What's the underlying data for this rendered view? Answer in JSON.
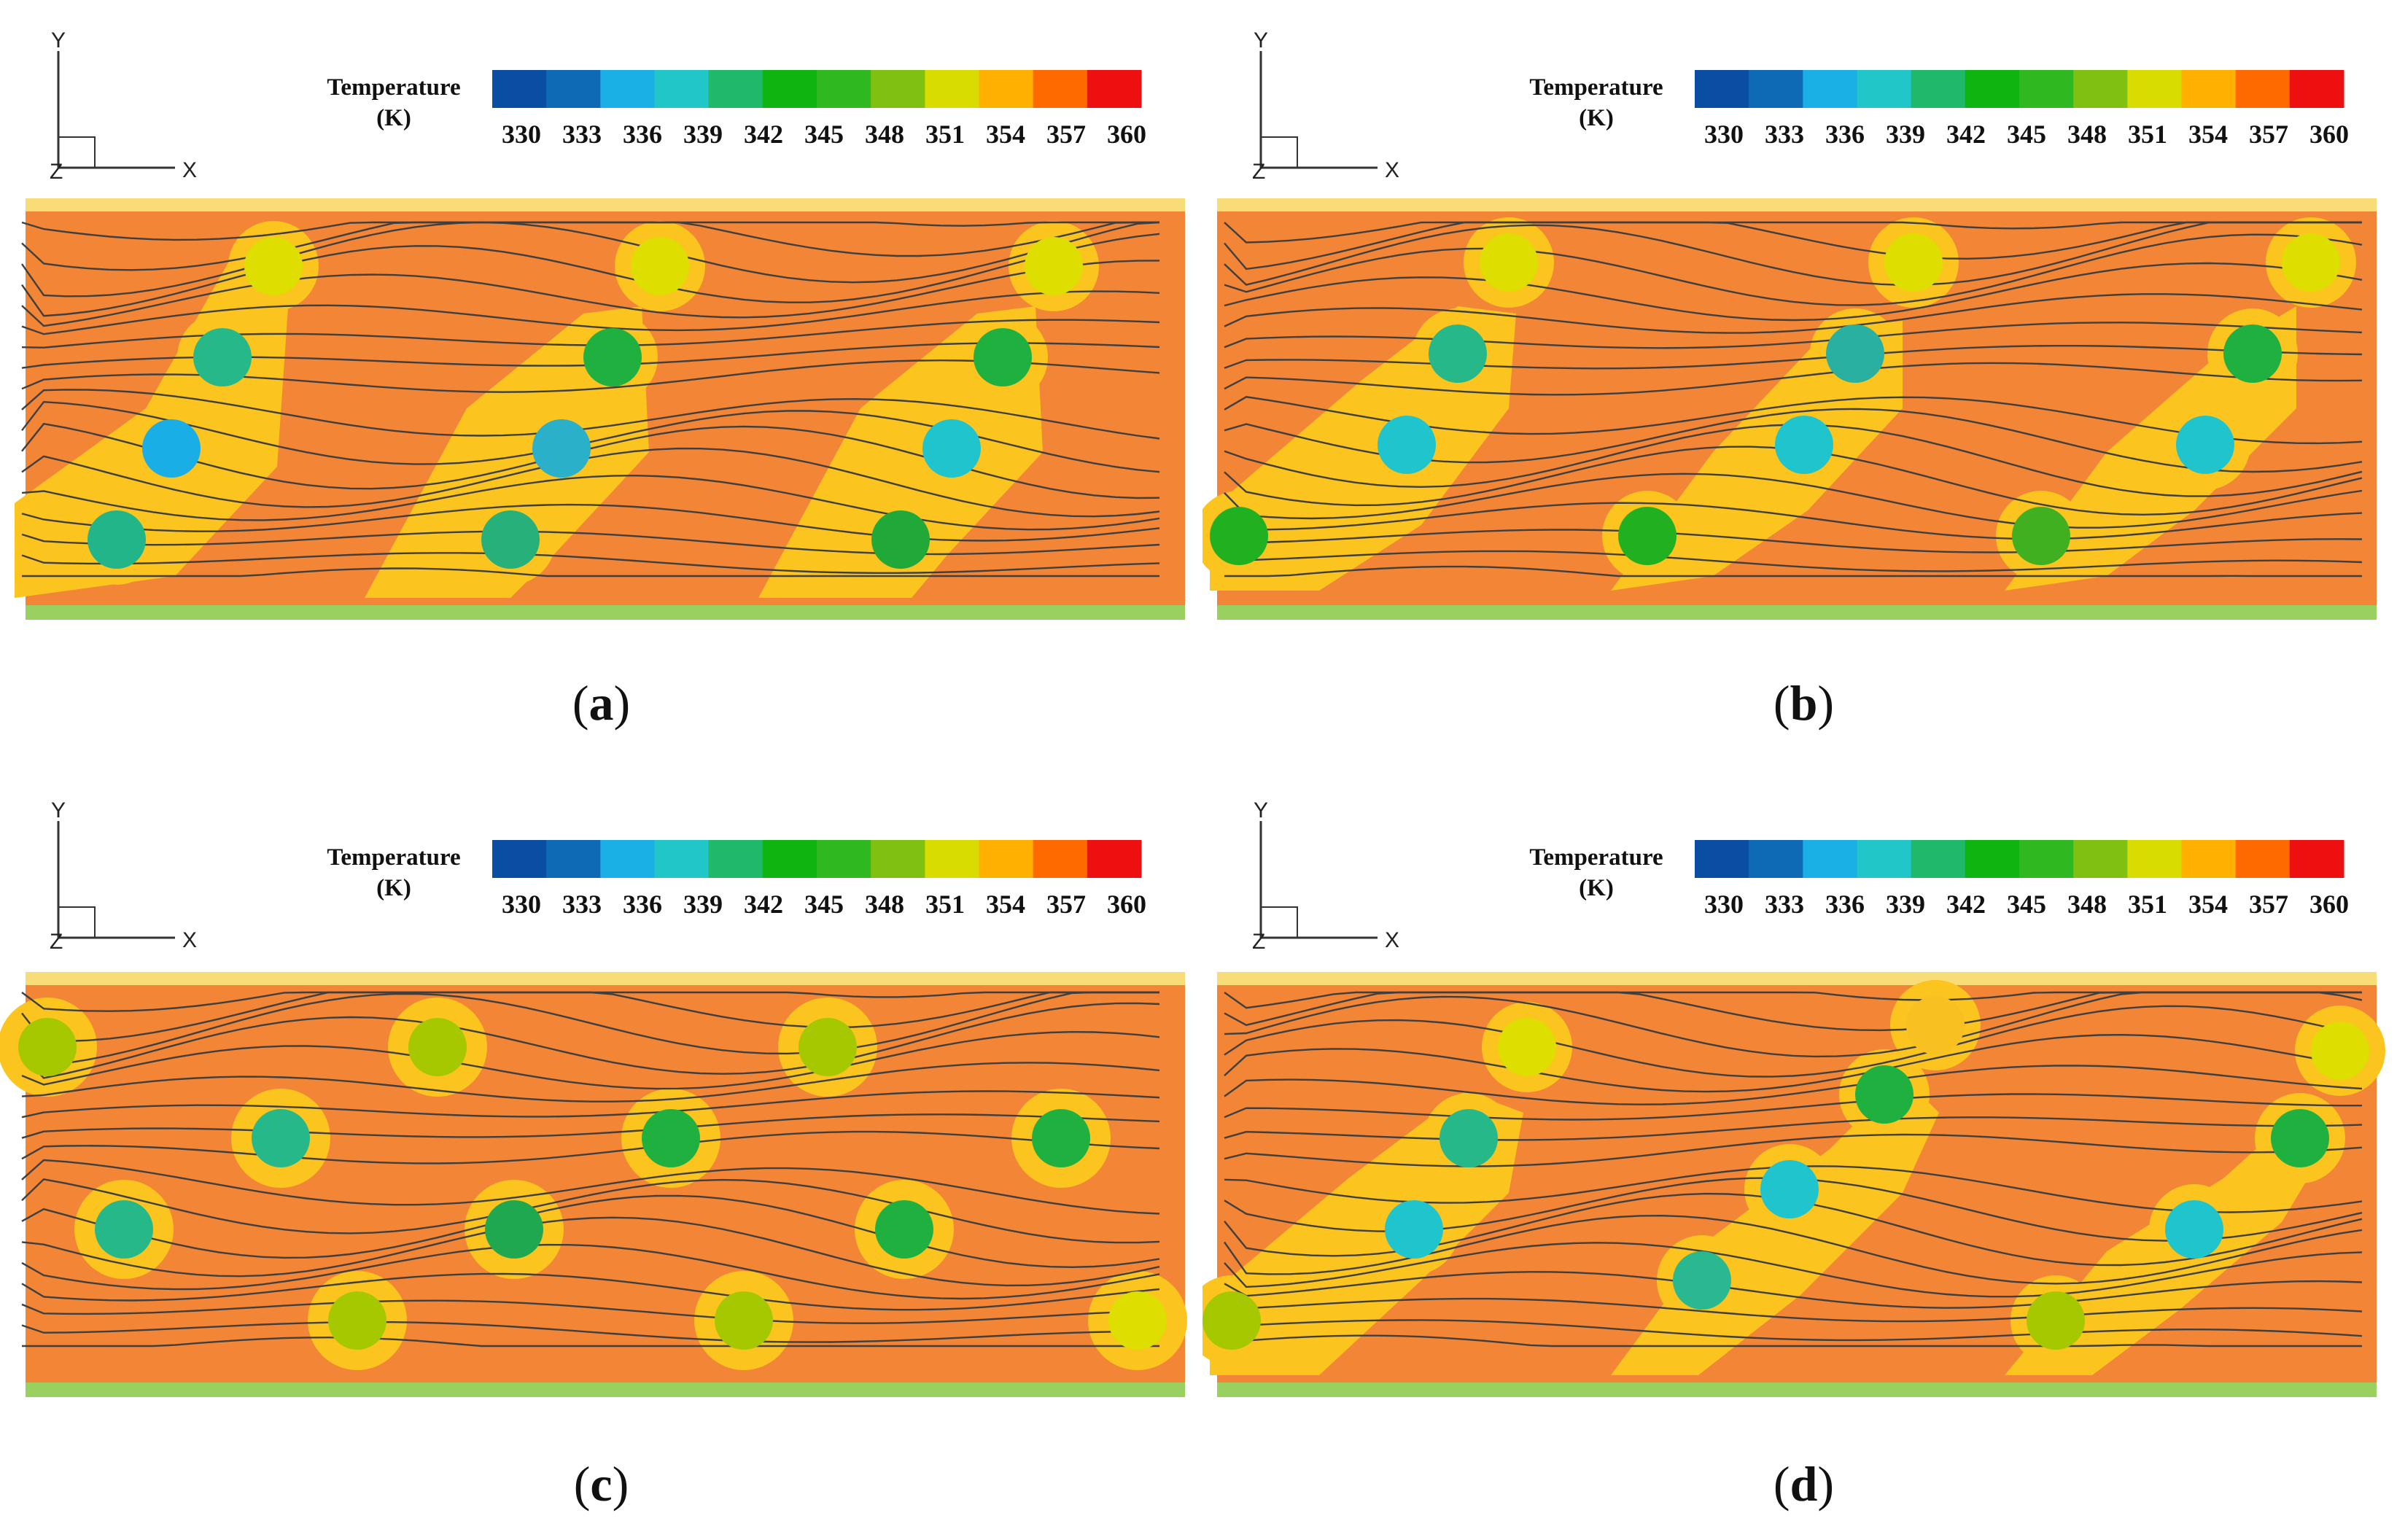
{
  "colorbar": {
    "title_line1": "Temperature",
    "title_line2": "(K)",
    "ticks": [
      "330",
      "333",
      "336",
      "339",
      "342",
      "345",
      "348",
      "351",
      "354",
      "357",
      "360"
    ],
    "colors": [
      "#0a4ea3",
      "#0f6ab5",
      "#1ab0e6",
      "#20c6c8",
      "#20b86a",
      "#10b410",
      "#30b820",
      "#80c010",
      "#d8dc00",
      "#ffb000",
      "#ff6a00",
      "#ee1010"
    ]
  },
  "axes": {
    "y": "Y",
    "x": "X",
    "z": "Z"
  },
  "colors": {
    "background_hot": "#f28536",
    "warm": "#fbc41e",
    "streamline": "#3f3f3f",
    "wall_top": "#f8dc78",
    "wall_bottom": "#9ad060"
  },
  "panels": [
    {
      "id": "a",
      "label": "a"
    },
    {
      "id": "b",
      "label": "b"
    },
    {
      "id": "c",
      "label": "c"
    },
    {
      "id": "d",
      "label": "d"
    }
  ]
}
